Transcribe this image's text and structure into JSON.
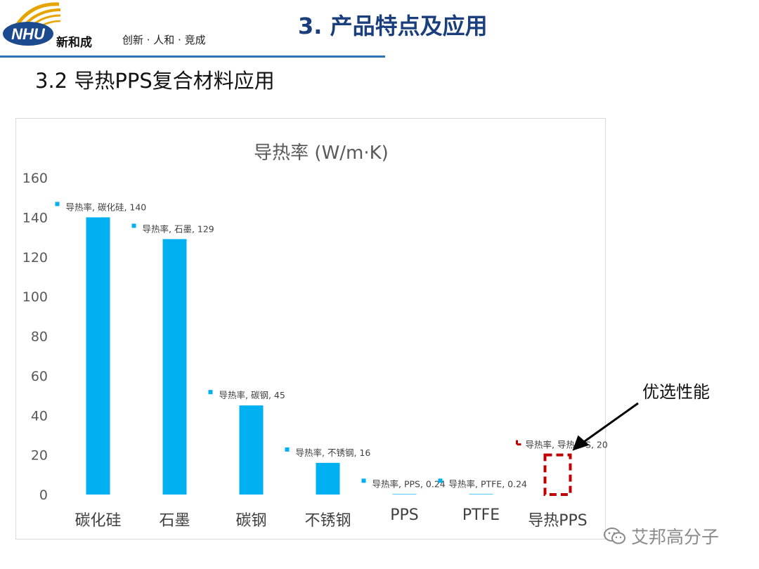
{
  "header": {
    "logo_text": "NHU",
    "brand_name": "新和成",
    "slogan": "创新 · 人和 · 竞成",
    "title": "3. 产品特点及应用"
  },
  "section_title": "3.2 导热PPS复合材料应用",
  "callout_label": "优选性能",
  "watermark": "艾邦高分子",
  "colors": {
    "bar": "#00b0f0",
    "highlight": "#c00000",
    "arrow": "#000000",
    "brand_blue": "#1b3f7c",
    "rule": "#2e75b6"
  },
  "chart_data": {
    "type": "bar",
    "title": "导热率 (W/m·K)",
    "categories": [
      "碳化硅",
      "石墨",
      "碳钢",
      "不锈钢",
      "PPS",
      "PTFE",
      "导热PPS"
    ],
    "series": [
      {
        "name": "导热率",
        "values": [
          140,
          129,
          45,
          16,
          0.24,
          0.24,
          20
        ]
      }
    ],
    "data_labels": [
      "导热率, 碳化硅, 140",
      "导热率, 石墨, 129",
      "导热率, 碳钢, 45",
      "导热率, 不锈钢, 16",
      "导热率, PPS, 0.24",
      "导热率, PTFE, 0.24",
      "导热率, 导热PPS, 20"
    ],
    "highlight_category": "导热PPS",
    "ylim": [
      0,
      160
    ],
    "yticks": [
      0,
      20,
      40,
      60,
      80,
      100,
      120,
      140,
      160
    ],
    "grid": false,
    "legend": "none"
  }
}
